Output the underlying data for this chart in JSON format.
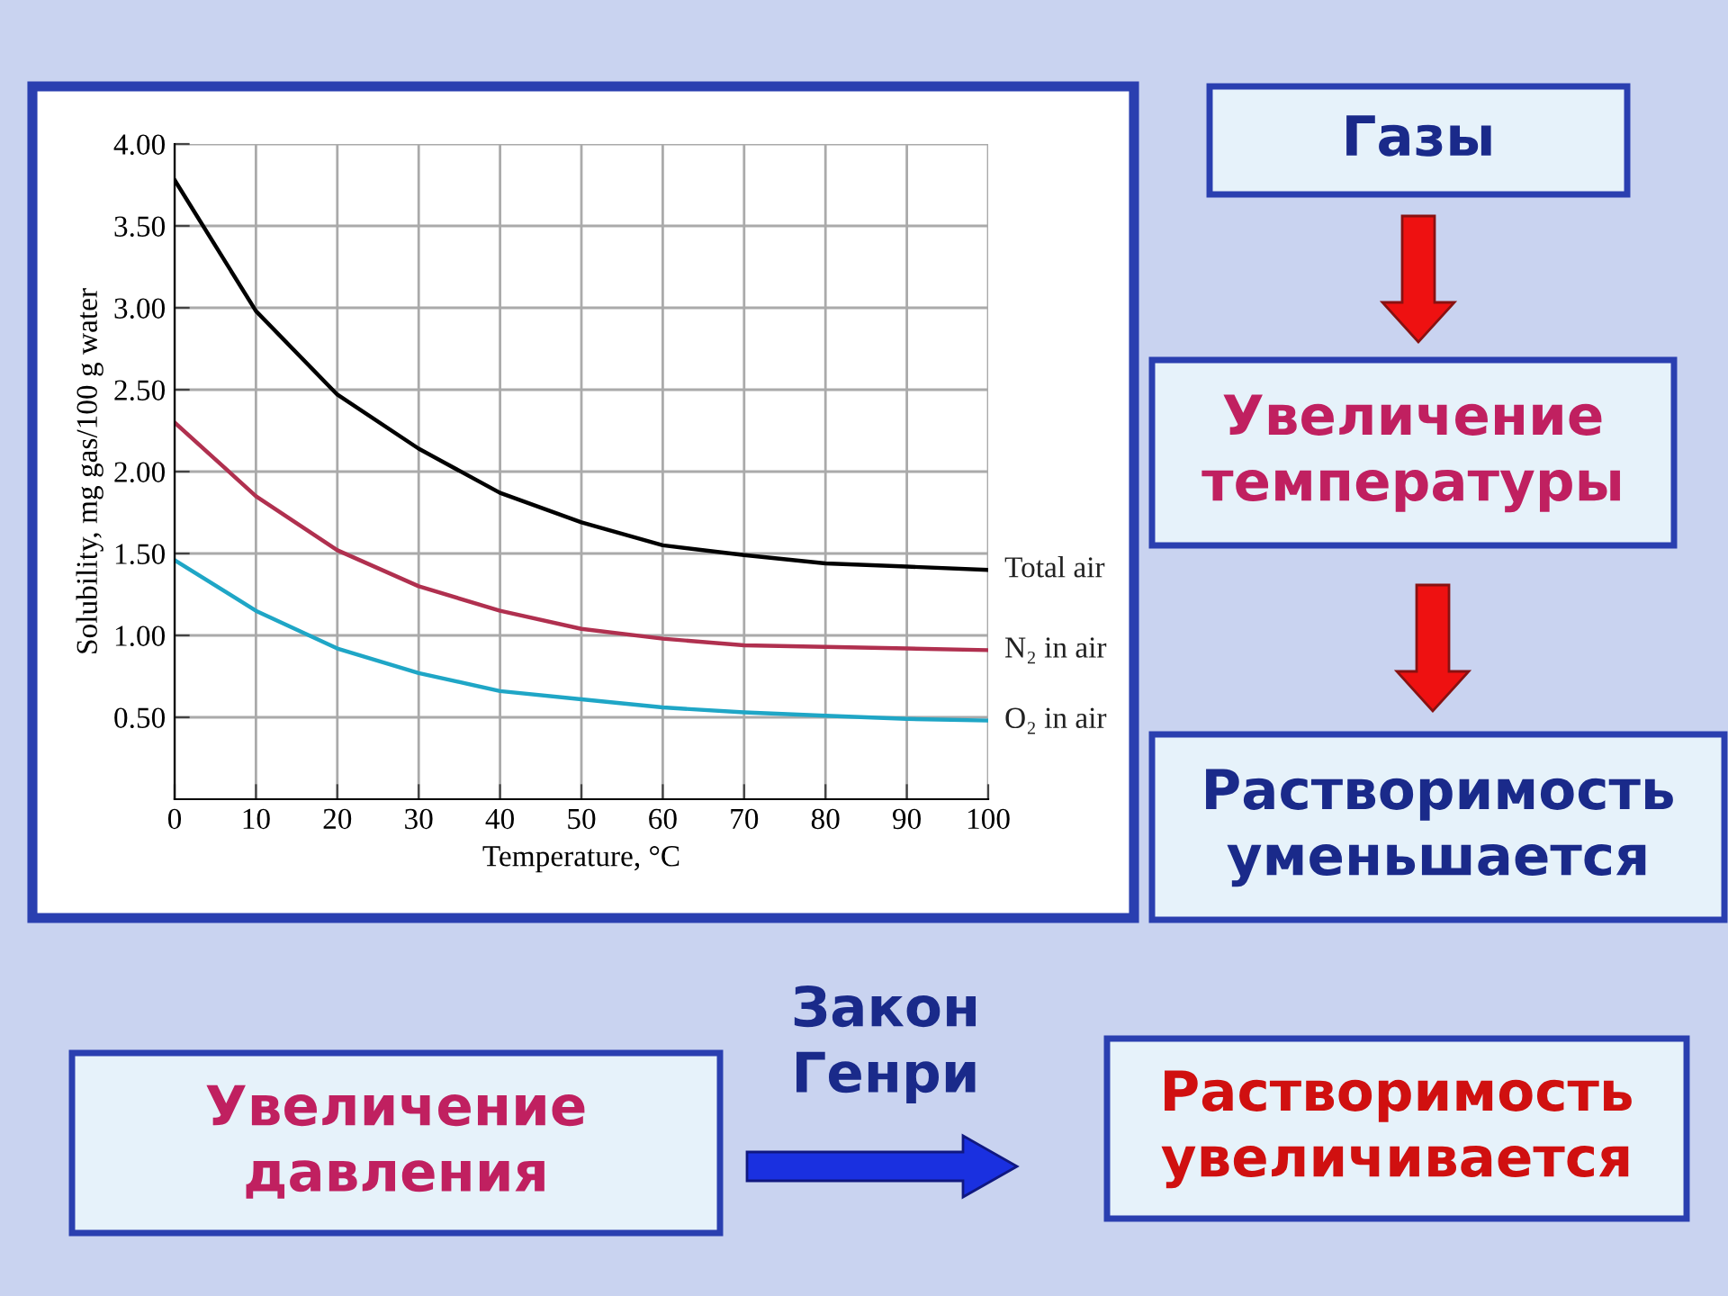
{
  "chart_data": {
    "type": "line",
    "xlabel": "Temperature, °C",
    "ylabel": "Solubility, mg gas/100 g water",
    "x": [
      0,
      10,
      20,
      30,
      40,
      50,
      60,
      70,
      80,
      90,
      100
    ],
    "series": [
      {
        "name": "Total air",
        "color": "#000000",
        "values": [
          3.78,
          2.98,
          2.47,
          2.14,
          1.87,
          1.69,
          1.55,
          1.49,
          1.44,
          1.42,
          1.4
        ]
      },
      {
        "name": "N₂ in air",
        "color": "#b0304f",
        "values": [
          2.3,
          1.85,
          1.52,
          1.3,
          1.15,
          1.04,
          0.98,
          0.94,
          0.93,
          0.92,
          0.91
        ]
      },
      {
        "name": "O₂ in air",
        "color": "#1fa6c6",
        "values": [
          1.46,
          1.15,
          0.92,
          0.77,
          0.66,
          0.61,
          0.56,
          0.53,
          0.51,
          0.49,
          0.48
        ]
      }
    ],
    "xlim": [
      0,
      100
    ],
    "xticks": [
      0,
      10,
      20,
      30,
      40,
      50,
      60,
      70,
      80,
      90,
      100
    ],
    "ylim": [
      0,
      4
    ],
    "yticks": [
      {
        "value": 0.5,
        "label": "0.50"
      },
      {
        "value": 1,
        "label": "1.00"
      },
      {
        "value": 1.5,
        "label": "1.50"
      },
      {
        "value": 2,
        "label": "2.00"
      },
      {
        "value": 2.5,
        "label": "2.50"
      },
      {
        "value": 3,
        "label": "3.00"
      },
      {
        "value": 3.5,
        "label": "3.50"
      },
      {
        "value": 4,
        "label": "4.00"
      }
    ],
    "grid": true,
    "legend": false,
    "marker": "none",
    "line_style": "solid",
    "annotations": [
      "Газы",
      "Увеличение температуры",
      "Растворимость уменьшается",
      "Закон Генри",
      "Увеличение давления",
      "Растворимость увеличивается"
    ]
  }
}
